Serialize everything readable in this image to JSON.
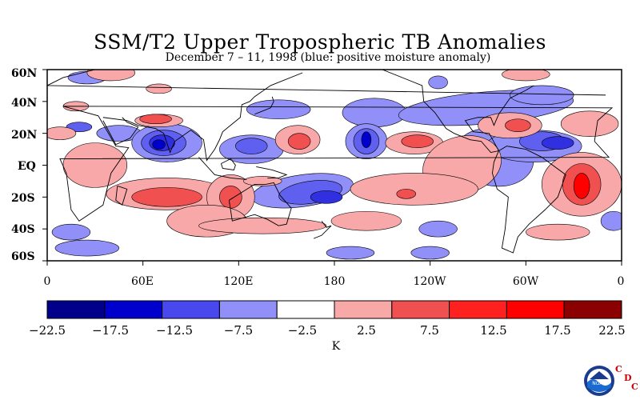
{
  "title": "SSM/T2 Upper Tropospheric TB Anomalies",
  "subtitle": "December 7 – 11, 1998 (blue: positive moisture anomaly)",
  "map": {
    "lat_labels": [
      "60N",
      "40N",
      "20N",
      "EQ",
      "20S",
      "40S",
      "60S"
    ],
    "lon_labels": [
      "0",
      "60E",
      "120E",
      "180",
      "120W",
      "60W",
      "0"
    ],
    "region": "global",
    "lat_range": [
      -60,
      60
    ],
    "lon_range": [
      0,
      360
    ],
    "anomaly_colors": {
      "strong_negative_core": "#0000cc",
      "negative_dark": "#3030e0",
      "negative_mid": "#6060f0",
      "negative_light": "#9090f8",
      "positive_light": "#f8a8a8",
      "positive_mid": "#f05050",
      "positive_dark": "#ff0000"
    }
  },
  "colorbar": {
    "colors": [
      "#00008b",
      "#0000cd",
      "#4848ee",
      "#9090f8",
      "#ffffff",
      "#f9a8a8",
      "#f05050",
      "#ff2020",
      "#ff0000",
      "#8b0000"
    ],
    "tick_labels": [
      "−22.5",
      "−17.5",
      "−12.5",
      "−7.5",
      "−2.5",
      "2.5",
      "7.5",
      "12.5",
      "17.5",
      "22.5"
    ],
    "unit": "K"
  },
  "logo": {
    "name": "NOAA",
    "letters": [
      "C",
      "D",
      "C"
    ]
  }
}
